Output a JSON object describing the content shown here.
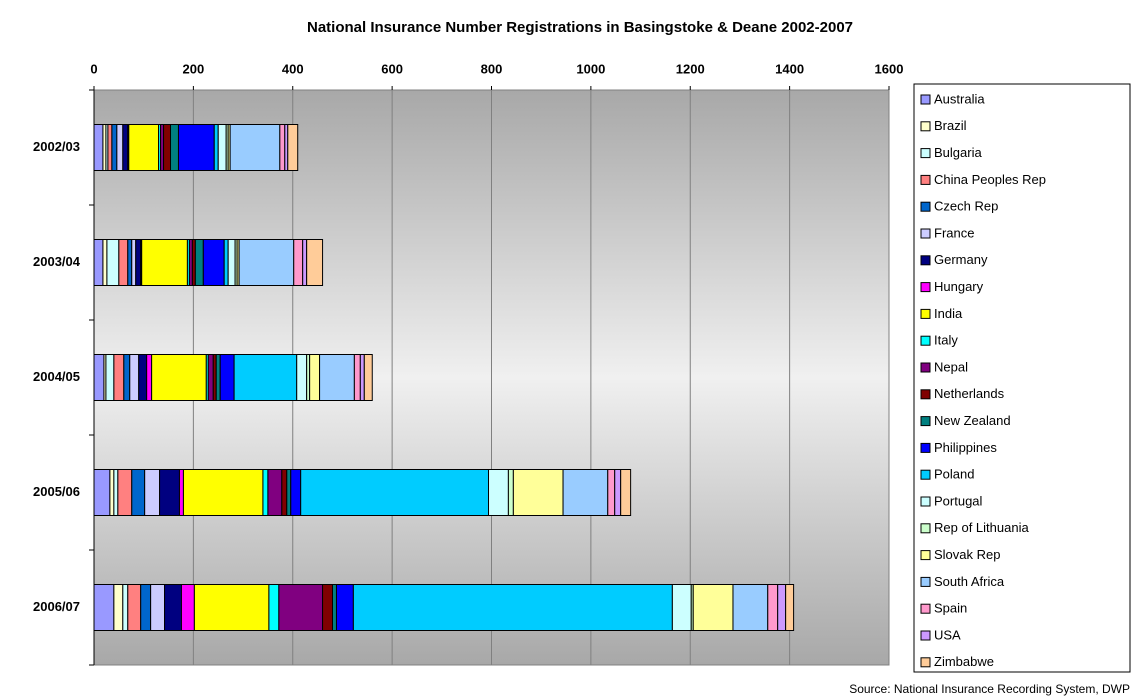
{
  "chart_data": {
    "type": "stacked_barh",
    "title": "National Insurance Number Registrations in Basingstoke & Deane 2002-2007",
    "source": "Source: National Insurance Recording System, DWP",
    "categories": [
      "2002/03",
      "2003/04",
      "2004/05",
      "2005/06",
      "2006/07"
    ],
    "xlim": [
      0,
      1600
    ],
    "xticks": [
      0,
      200,
      400,
      600,
      800,
      1000,
      1200,
      1400,
      1600
    ],
    "grid": true,
    "legend": "right",
    "series": [
      {
        "name": "Australia",
        "color": "#9999ff",
        "values": [
          18,
          18,
          20,
          32,
          40
        ]
      },
      {
        "name": "Brazil",
        "color": "#ffffcc",
        "values": [
          6,
          8,
          4,
          8,
          18
        ]
      },
      {
        "name": "Bulgaria",
        "color": "#ccffff",
        "values": [
          4,
          24,
          16,
          8,
          10
        ]
      },
      {
        "name": "China Peoples Rep",
        "color": "#ff8080",
        "values": [
          8,
          18,
          20,
          28,
          26
        ]
      },
      {
        "name": "Czech Rep",
        "color": "#0066cc",
        "values": [
          10,
          8,
          12,
          26,
          20
        ]
      },
      {
        "name": "France",
        "color": "#ccccff",
        "values": [
          12,
          8,
          18,
          30,
          28
        ]
      },
      {
        "name": "Germany",
        "color": "#000080",
        "values": [
          10,
          10,
          16,
          40,
          34
        ]
      },
      {
        "name": "Hungary",
        "color": "#ff00ff",
        "values": [
          2,
          2,
          10,
          8,
          26
        ]
      },
      {
        "name": "India",
        "color": "#ffff00",
        "values": [
          60,
          92,
          110,
          160,
          150
        ]
      },
      {
        "name": "Italy",
        "color": "#00ffff",
        "values": [
          4,
          4,
          4,
          10,
          20
        ]
      },
      {
        "name": "Nepal",
        "color": "#800080",
        "values": [
          6,
          6,
          10,
          28,
          88
        ]
      },
      {
        "name": "Netherlands",
        "color": "#800000",
        "values": [
          14,
          6,
          6,
          10,
          20
        ]
      },
      {
        "name": "New Zealand",
        "color": "#008080",
        "values": [
          16,
          16,
          8,
          8,
          8
        ]
      },
      {
        "name": "Philippines",
        "color": "#0000ff",
        "values": [
          72,
          42,
          28,
          20,
          34
        ]
      },
      {
        "name": "Poland",
        "color": "#00ccff",
        "values": [
          8,
          8,
          126,
          378,
          642
        ]
      },
      {
        "name": "Portugal",
        "color": "#ccffff",
        "values": [
          16,
          14,
          20,
          40,
          38
        ]
      },
      {
        "name": "Rep of Lithuania",
        "color": "#ccffcc",
        "values": [
          4,
          4,
          6,
          10,
          4
        ]
      },
      {
        "name": "Slovak Rep",
        "color": "#ffff99",
        "values": [
          4,
          4,
          20,
          100,
          80
        ]
      },
      {
        "name": "South Africa",
        "color": "#99ccff",
        "values": [
          100,
          110,
          70,
          90,
          70
        ]
      },
      {
        "name": "Spain",
        "color": "#ff99cc",
        "values": [
          10,
          18,
          12,
          14,
          20
        ]
      },
      {
        "name": "USA",
        "color": "#cc99ff",
        "values": [
          6,
          8,
          8,
          12,
          16
        ]
      },
      {
        "name": "Zimbabwe",
        "color": "#ffcc99",
        "values": [
          20,
          32,
          16,
          20,
          16
        ]
      }
    ]
  }
}
